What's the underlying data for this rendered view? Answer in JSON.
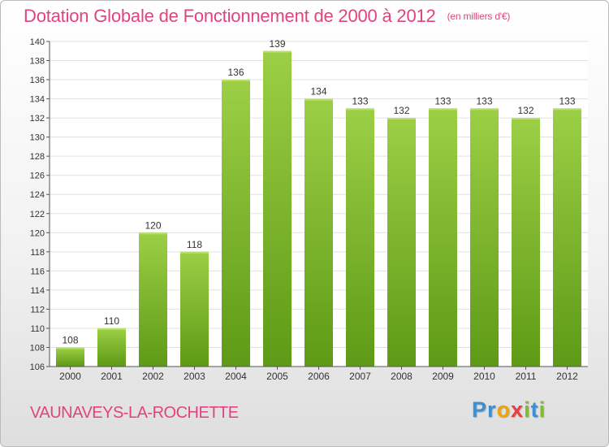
{
  "chart_data": {
    "type": "bar",
    "title": "Dotation Globale de Fonctionnement de 2000 à 2012",
    "unit_note": "(en milliers d'€)",
    "categories": [
      "2000",
      "2001",
      "2002",
      "2003",
      "2004",
      "2005",
      "2006",
      "2007",
      "2008",
      "2009",
      "2010",
      "2011",
      "2012"
    ],
    "values": [
      108,
      110,
      120,
      118,
      136,
      139,
      134,
      133,
      132,
      133,
      133,
      132,
      133
    ],
    "ylim": [
      106,
      140
    ],
    "yticks": [
      106,
      108,
      110,
      112,
      114,
      116,
      118,
      120,
      122,
      124,
      126,
      128,
      130,
      132,
      134,
      136,
      138,
      140
    ],
    "grid": true,
    "xlabel": "",
    "ylabel": ""
  },
  "footer": {
    "commune": "VAUNAVEYS-LA-ROCHETTE",
    "logo_letters": [
      "P",
      "r",
      "o",
      "x",
      "i",
      "t",
      "i"
    ]
  },
  "colors": {
    "title": "#e0447f",
    "bar_top": "#9ccf45",
    "bar_bottom": "#5e9a16",
    "grid": "#e0e0e0",
    "logo": [
      "#3a8fd9",
      "#3a8fd9",
      "#f0a500",
      "#e83e3e",
      "#7cbf2a",
      "#3a8fd9",
      "#7cbf2a"
    ]
  }
}
